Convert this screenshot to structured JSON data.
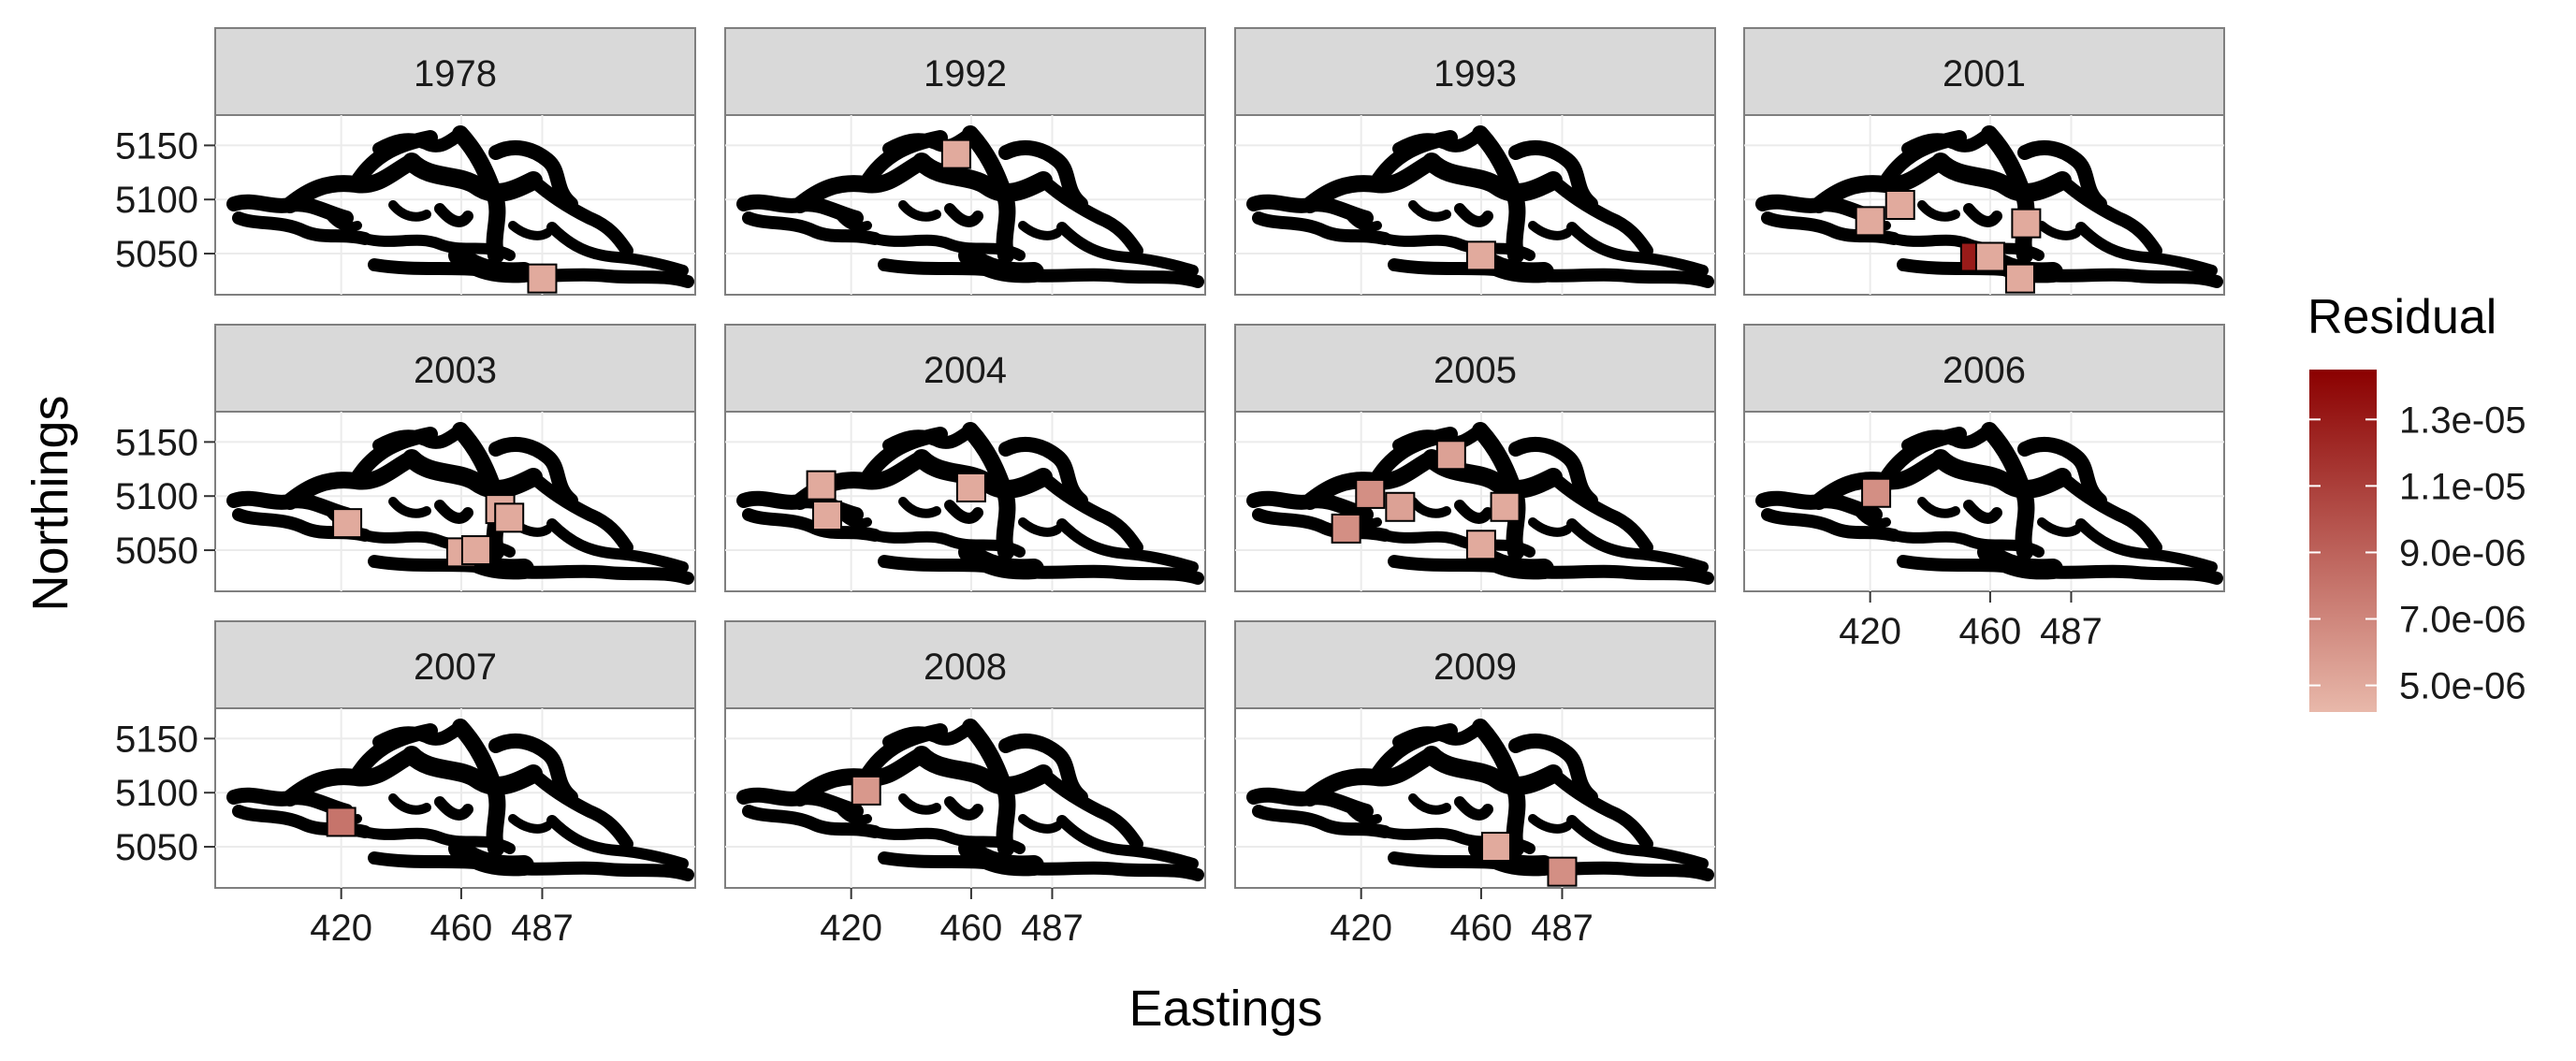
{
  "chart_data": {
    "type": "scatter",
    "facet_by": "year",
    "facets": [
      {
        "label": "1978",
        "points": [
          {
            "x": 487,
            "y": 5027,
            "residual": 5e-06
          }
        ]
      },
      {
        "label": "1992",
        "points": [
          {
            "x": 455,
            "y": 5142,
            "residual": 5e-06
          }
        ]
      },
      {
        "label": "1993",
        "points": [
          {
            "x": 460,
            "y": 5048,
            "residual": 5e-06
          }
        ]
      },
      {
        "label": "2001",
        "points": [
          {
            "x": 420,
            "y": 5080,
            "residual": 5e-06
          },
          {
            "x": 430,
            "y": 5095,
            "residual": 5e-06
          },
          {
            "x": 472,
            "y": 5078,
            "residual": 5e-06
          },
          {
            "x": 455,
            "y": 5047,
            "residual": 1.3e-05
          },
          {
            "x": 460,
            "y": 5047,
            "residual": 5e-06
          },
          {
            "x": 470,
            "y": 5027,
            "residual": 5e-06
          }
        ]
      },
      {
        "label": "2003",
        "points": [
          {
            "x": 422,
            "y": 5075,
            "residual": 5e-06
          },
          {
            "x": 460,
            "y": 5048,
            "residual": 5e-06
          },
          {
            "x": 465,
            "y": 5050,
            "residual": 5e-06
          },
          {
            "x": 473,
            "y": 5088,
            "residual": 5e-06
          },
          {
            "x": 476,
            "y": 5080,
            "residual": 5e-06
          }
        ]
      },
      {
        "label": "2004",
        "points": [
          {
            "x": 410,
            "y": 5110,
            "residual": 5e-06
          },
          {
            "x": 412,
            "y": 5082,
            "residual": 5e-06
          },
          {
            "x": 460,
            "y": 5108,
            "residual": 5e-06
          }
        ]
      },
      {
        "label": "2005",
        "points": [
          {
            "x": 415,
            "y": 5070,
            "residual": 6.5e-06
          },
          {
            "x": 423,
            "y": 5102,
            "residual": 6.5e-06
          },
          {
            "x": 433,
            "y": 5090,
            "residual": 5.5e-06
          },
          {
            "x": 450,
            "y": 5138,
            "residual": 5.5e-06
          },
          {
            "x": 460,
            "y": 5055,
            "residual": 5e-06
          },
          {
            "x": 468,
            "y": 5090,
            "residual": 5e-06
          }
        ]
      },
      {
        "label": "2006",
        "points": [
          {
            "x": 422,
            "y": 5103,
            "residual": 6.5e-06
          }
        ]
      },
      {
        "label": "2007",
        "points": [
          {
            "x": 420,
            "y": 5073,
            "residual": 8e-06
          }
        ]
      },
      {
        "label": "2008",
        "points": [
          {
            "x": 425,
            "y": 5102,
            "residual": 6e-06
          }
        ]
      },
      {
        "label": "2009",
        "points": [
          {
            "x": 465,
            "y": 5050,
            "residual": 5e-06
          },
          {
            "x": 487,
            "y": 5027,
            "residual": 6.5e-06
          }
        ]
      }
    ],
    "xlabel": "Eastings",
    "ylabel": "Northings",
    "x_ticks": [
      420,
      460,
      487
    ],
    "y_ticks": [
      5050,
      5100,
      5150
    ],
    "xlim": [
      378,
      538
    ],
    "ylim": [
      5012,
      5178
    ],
    "grid": true,
    "legend": {
      "title": "Residual",
      "position": "right",
      "labels": [
        "1.3e-05",
        "1.1e-05",
        "9.0e-06",
        "7.0e-06",
        "5.0e-06"
      ],
      "values": [
        1.3e-05,
        1.1e-05,
        9e-06,
        7e-06,
        5e-06
      ],
      "min": 4.2e-06,
      "max": 1.45e-05,
      "color_low": "#e8b8aa",
      "color_high": "#8b0000"
    },
    "background_points_color": "#000000"
  }
}
